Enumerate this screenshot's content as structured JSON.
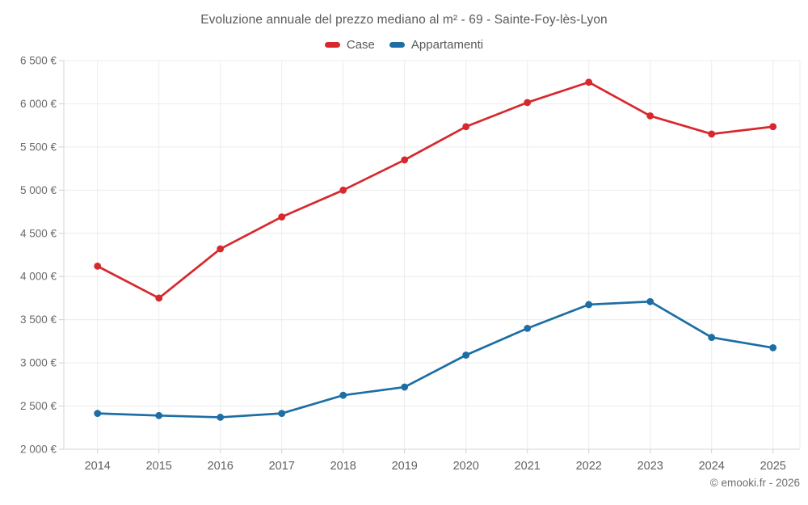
{
  "title": "Evoluzione annuale del prezzo mediano al m² - 69 - Sainte-Foy-lès-Lyon",
  "footer": "© emooki.fr - 2026",
  "legend": [
    {
      "label": "Case",
      "color": "#d7282d"
    },
    {
      "label": "Appartamenti",
      "color": "#1c6ea4"
    }
  ],
  "chart_data": {
    "type": "line",
    "title": "Evoluzione annuale del prezzo mediano al m² - 69 - Sainte-Foy-lès-Lyon",
    "categories": [
      "2014",
      "2015",
      "2016",
      "2017",
      "2018",
      "2019",
      "2020",
      "2021",
      "2022",
      "2023",
      "2024",
      "2025"
    ],
    "series": [
      {
        "name": "Case",
        "color": "#d7282d",
        "values": [
          4120,
          3750,
          4320,
          4690,
          5000,
          5350,
          5735,
          6015,
          6250,
          5860,
          5650,
          5735
        ]
      },
      {
        "name": "Appartamenti",
        "color": "#1c6ea4",
        "values": [
          2415,
          2390,
          2370,
          2415,
          2625,
          2720,
          3090,
          3400,
          3675,
          3710,
          3295,
          3175
        ]
      }
    ],
    "xlabel": "",
    "ylabel": "",
    "ylim": [
      2000,
      6500
    ],
    "yticks": [
      2000,
      2500,
      3000,
      3500,
      4000,
      4500,
      5000,
      5500,
      6000,
      6500
    ],
    "ytick_labels": [
      "2 000 €",
      "2 500 €",
      "3 000 €",
      "3 500 €",
      "4 000 €",
      "4 500 €",
      "5 000 €",
      "5 500 €",
      "6 000 €",
      "6 500 €"
    ],
    "grid": true,
    "markers": true,
    "legend_position": "top"
  }
}
